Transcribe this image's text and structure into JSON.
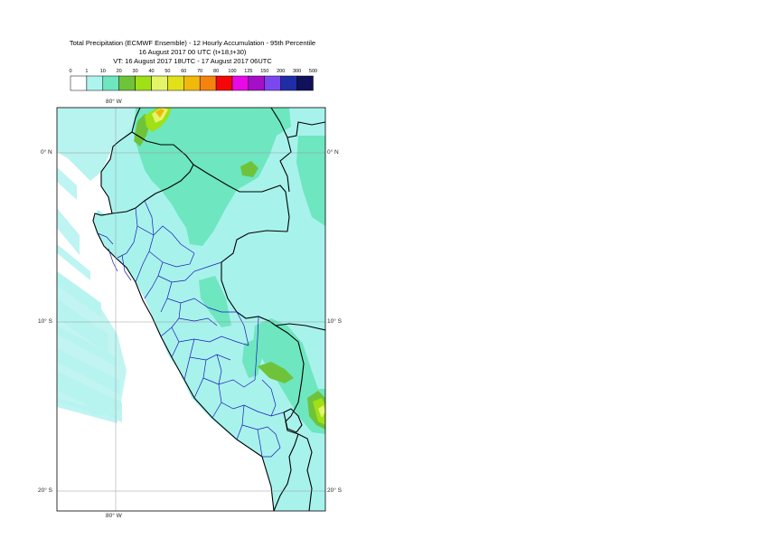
{
  "title": {
    "line1": "Total Precipitation (ECMWF Ensemble) - 12 Hourly Accumulation - 95th Percentile",
    "line2": "16 August 2017 00 UTC (t+18,t+30)",
    "line3": "VT: 16 August 2017 18UTC - 17 August 2017 06UTC"
  },
  "legend": {
    "ticks": [
      "0",
      "1",
      "10",
      "20",
      "30",
      "40",
      "50",
      "60",
      "70",
      "80",
      "100",
      "125",
      "150",
      "200",
      "300",
      "500"
    ],
    "colors": [
      "#ffffff",
      "#aef4ee",
      "#6ee6c0",
      "#6fc33b",
      "#9fe016",
      "#e4f56a",
      "#e1e11a",
      "#f1b90a",
      "#f6830d",
      "#f50707",
      "#e70ae6",
      "#a50fc7",
      "#7b48f0",
      "#1f2ea7",
      "#11105a"
    ]
  },
  "map": {
    "lon_labels": {
      "top": "80° W",
      "bottom": "80° W"
    },
    "lat_labels": [
      "0° N",
      "10° S",
      "20° S"
    ],
    "colors": {
      "ocean_light": "#b7f3ef",
      "land_fill": "#a8f2ec",
      "band_10_20": "#6ee6c0",
      "band_20_30": "#6fc33b",
      "band_30_40": "#9fe016",
      "band_40_50": "#e4f56a",
      "band_60_70": "#f1b90a",
      "border": "#000000",
      "admin": "#1a1ab5",
      "grid": "#888888"
    }
  }
}
